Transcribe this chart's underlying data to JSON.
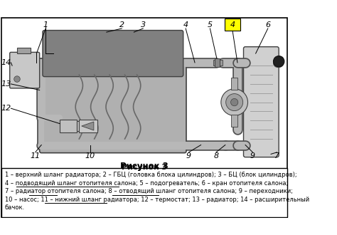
{
  "title": "Рисунок 3",
  "bg_color": "#ffffff",
  "caption_lines": [
    {
      "text": "1 – верхний шланг радиатора; 2 – ГБЦ (головка блока цилиндров); 3 – БЦ (блок цилиндров);",
      "underlines": []
    },
    {
      "text": "4 – подводящий шланг отопителя салона; 5 – подогреватель; 6 – кран отопителя салона;",
      "underlines": [
        [
          0.041,
          0.27
        ]
      ]
    },
    {
      "text": "7 – радиатор отопителя салона; 8 – отводящий шланг отопителя салона; 9 – переходники;",
      "underlines": [
        [
          0.059,
          0.122
        ],
        [
          0.237,
          0.342
        ]
      ]
    },
    {
      "text": "10 – насос; 11 – нижний шланг радиатора; 12 – термостат; 13 – радиатор; 14 – расширительный",
      "underlines": []
    },
    {
      "text": "бачок.",
      "underlines": []
    }
  ],
  "highlight_color": "#ffff00",
  "highlight_border": "#000000",
  "body_fill": "#b0b0b0",
  "body_dark": "#808080",
  "body_outline": "#404040",
  "pipe_color": "#b8b8b8",
  "pipe_edge": "#505050"
}
